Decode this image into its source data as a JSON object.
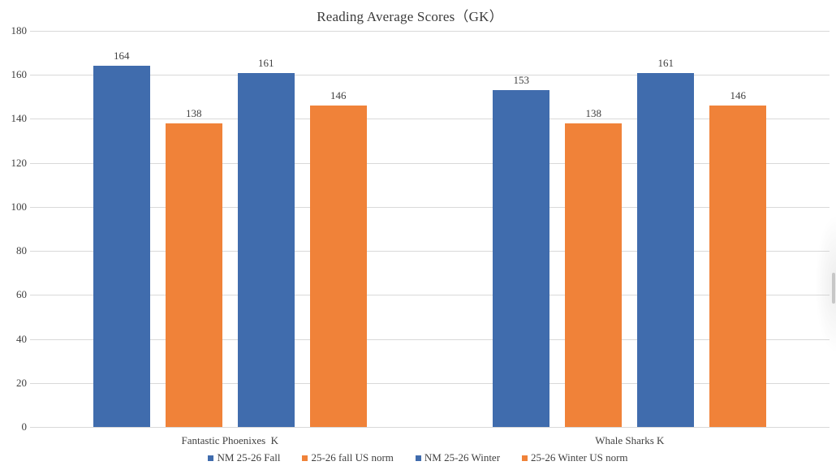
{
  "title": "Reading Average Scores（GK）",
  "colors": {
    "series_blue": "#406CAD",
    "series_orange": "#F08239",
    "gridline": "#D9D9D9",
    "text": "#3F3F3F"
  },
  "chart_data": {
    "type": "bar",
    "title": "Reading Average Scores（GK）",
    "categories": [
      "Fantastic Phoenixes  K",
      "Whale Sharks K"
    ],
    "series": [
      {
        "name": "NM 25-26 Fall",
        "color": "#406CAD",
        "values": [
          164,
          153
        ]
      },
      {
        "name": "25-26 fall US norm",
        "color": "#F08239",
        "values": [
          138,
          138
        ]
      },
      {
        "name": "NM 25-26 Winter",
        "color": "#406CAD",
        "values": [
          161,
          161
        ]
      },
      {
        "name": "25-26 Winter US norm",
        "color": "#F08239",
        "values": [
          146,
          146
        ]
      }
    ],
    "data_labels": {
      "Fantastic Phoenixes  K": [
        164,
        138,
        161,
        146
      ],
      "Whale Sharks K": [
        153,
        138,
        161,
        146
      ]
    },
    "ylim": [
      0,
      180
    ],
    "yticks": [
      0,
      20,
      40,
      60,
      80,
      100,
      120,
      140,
      160,
      180
    ],
    "grid": true,
    "legend_position": "bottom",
    "xlabel": "",
    "ylabel": ""
  }
}
